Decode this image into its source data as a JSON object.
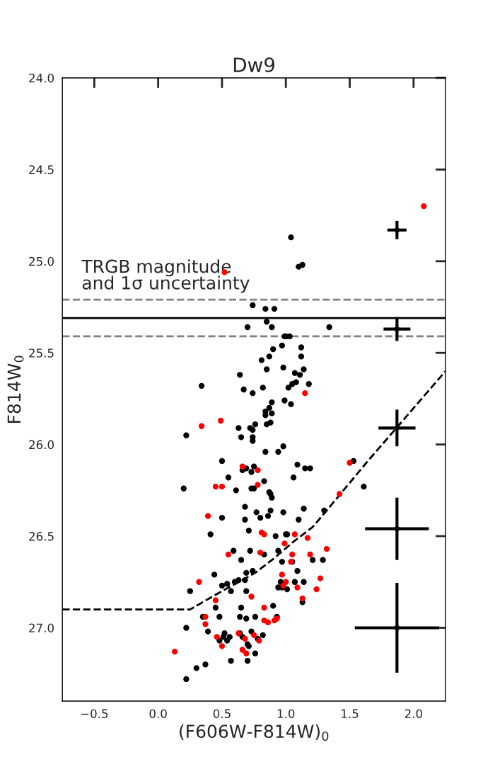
{
  "chart_data": {
    "type": "scatter",
    "title": "Dw9",
    "xlabel": "(F606W-F814W)$_{0}$",
    "ylabel": "F814W$_{0}$",
    "xlim": [
      -0.75,
      2.25
    ],
    "ylim": [
      27.4,
      24.0
    ],
    "xticks": [
      {
        "value": -0.5,
        "label": "−0.5"
      },
      {
        "value": 0,
        "label": "0.0"
      },
      {
        "value": 0.5,
        "label": "0.5"
      },
      {
        "value": 1,
        "label": "1.0"
      },
      {
        "value": 1.5,
        "label": "1.5"
      },
      {
        "value": 2,
        "label": "2.0"
      }
    ],
    "yticks": [
      {
        "value": 24,
        "label": "24.0"
      },
      {
        "value": 24.5,
        "label": "24.5"
      },
      {
        "value": 25,
        "label": "25.0"
      },
      {
        "value": 25.5,
        "label": "25.5"
      },
      {
        "value": 26,
        "label": "26.0"
      },
      {
        "value": 26.5,
        "label": "26.5"
      },
      {
        "value": 27,
        "label": "27.0"
      }
    ],
    "grid": false,
    "legend": false,
    "annotations": [
      "TRGB magnitude\nand 1σ uncertainty"
    ],
    "ref_lines": [
      {
        "axis": "y",
        "value": 25.31,
        "color": "#000000",
        "line_style": "solid"
      },
      {
        "axis": "y",
        "value": 25.21,
        "color": "#808080",
        "line_style": "dashed"
      },
      {
        "axis": "y",
        "value": 25.41,
        "color": "#808080",
        "line_style": "dashed"
      }
    ],
    "series": [
      {
        "color": "#000000",
        "marker": "circle",
        "x": [
          1.04,
          1.1,
          1.13,
          0.74,
          0.84,
          0.91,
          0.85,
          0.7,
          0.89,
          1.34,
          0.99,
          1.0,
          1.03,
          0.97,
          1.12,
          0.9,
          0.87,
          1.12,
          0.81,
          0.85,
          0.98,
          1.14,
          0.64,
          1.07,
          1.11,
          0.34,
          0.67,
          0.74,
          0.82,
          1.02,
          1.05,
          1.08,
          1.18,
          0.89,
          0.99,
          1.04,
          0.87,
          0.84,
          0.89,
          0.84,
          0.88,
          0.85,
          0.76,
          0.63,
          0.72,
          0.74,
          0.22,
          0.65,
          0.74,
          0.74,
          0.84,
          0.94,
          0.98,
          0.5,
          0.69,
          0.75,
          0.66,
          0.73,
          1.09,
          1.15,
          1.19,
          0.55,
          1.06,
          0.83,
          0.73,
          0.75,
          0.2,
          0.61,
          0.87,
          0.88,
          0.89,
          1.53,
          1.61,
          0.68,
          0.88,
          1.14,
          0.77,
          1.3,
          0.5,
          0.68,
          0.8,
          0.86,
          0.98,
          1.1,
          0.41,
          0.71,
          0.92,
          1.0,
          1.01,
          0.59,
          0.72,
          0.83,
          0.94,
          0.65,
          0.97,
          1.05,
          1.21,
          1.29,
          0.44,
          0.69,
          0.74,
          1.09,
          0.63,
          0.6,
          0.68,
          0.5,
          0.54,
          0.96,
          1.07,
          1.14,
          0.94,
          0.97,
          1.01,
          0.25,
          0.57,
          0.69,
          1.13,
          0.45,
          0.65,
          0.9,
          0.35,
          0.48,
          0.64,
          0.69,
          0.76,
          0.93,
          0.22,
          0.39,
          0.48,
          0.51,
          0.52,
          0.54,
          0.56,
          0.64,
          0.66,
          0.73,
          0.78,
          0.82,
          0.7,
          0.71,
          0.76,
          0.57,
          0.7,
          0.37,
          0.3,
          0.22
        ],
        "values": [
          24.87,
          25.03,
          25.02,
          25.24,
          25.26,
          25.26,
          25.33,
          25.36,
          25.36,
          25.36,
          25.41,
          25.41,
          25.41,
          25.46,
          25.47,
          25.48,
          25.52,
          25.52,
          25.54,
          25.59,
          25.58,
          25.59,
          25.62,
          25.61,
          25.62,
          25.68,
          25.7,
          25.72,
          25.69,
          25.69,
          25.67,
          25.66,
          25.67,
          25.77,
          25.76,
          25.78,
          25.8,
          25.82,
          25.83,
          25.84,
          25.88,
          25.89,
          25.89,
          25.91,
          25.91,
          25.92,
          25.95,
          25.96,
          25.96,
          25.98,
          26.04,
          26.04,
          26.01,
          26.09,
          26.13,
          26.12,
          26.14,
          26.15,
          26.11,
          26.13,
          26.13,
          26.18,
          26.18,
          26.2,
          26.24,
          26.24,
          26.24,
          26.25,
          26.26,
          26.27,
          26.29,
          26.09,
          26.23,
          26.34,
          26.36,
          26.35,
          26.37,
          26.36,
          26.4,
          26.41,
          26.4,
          26.39,
          26.37,
          26.41,
          26.49,
          26.47,
          26.5,
          26.49,
          26.49,
          26.58,
          26.58,
          26.6,
          26.58,
          26.63,
          26.64,
          26.64,
          26.63,
          26.63,
          26.71,
          26.7,
          26.69,
          26.69,
          26.74,
          26.75,
          26.74,
          26.77,
          26.76,
          26.75,
          26.75,
          26.75,
          26.78,
          26.78,
          26.79,
          26.8,
          26.8,
          26.8,
          26.86,
          26.89,
          26.89,
          26.88,
          26.94,
          26.94,
          26.94,
          26.95,
          26.94,
          26.94,
          27.0,
          27.02,
          27.07,
          27.05,
          27.03,
          27.07,
          27.05,
          27.03,
          27.05,
          27.02,
          27.06,
          27.04,
          27.09,
          27.1,
          27.14,
          27.18,
          27.18,
          27.2,
          27.22,
          27.28
        ]
      },
      {
        "color": "#ff0000",
        "marker": "circle",
        "x": [
          2.08,
          0.52,
          1.15,
          0.49,
          0.34,
          0.66,
          0.78,
          0.78,
          0.45,
          0.5,
          1.42,
          1.5,
          0.39,
          0.81,
          0.83,
          1.07,
          1.17,
          0.99,
          1.32,
          0.55,
          0.8,
          1.05,
          1.19,
          1.04,
          0.97,
          0.32,
          1.0,
          1.27,
          0.98,
          1.09,
          1.24,
          0.73,
          0.45,
          1.13,
          0.83,
          0.37,
          0.83,
          0.86,
          0.93,
          0.91,
          0.37,
          0.46,
          0.5,
          0.63,
          0.68,
          0.75,
          0.79,
          0.66,
          0.69,
          0.13
        ],
        "values": [
          24.7,
          25.06,
          25.72,
          25.87,
          25.9,
          26.12,
          26.14,
          26.22,
          26.23,
          26.23,
          26.27,
          26.1,
          26.39,
          26.48,
          26.49,
          26.49,
          26.51,
          26.54,
          26.57,
          26.6,
          26.59,
          26.6,
          26.6,
          26.64,
          26.71,
          26.75,
          26.75,
          26.73,
          26.77,
          26.78,
          26.79,
          26.83,
          26.85,
          26.84,
          26.89,
          26.94,
          26.96,
          26.97,
          26.95,
          26.96,
          26.98,
          27.05,
          27.1,
          27.03,
          27.06,
          27.04,
          27.07,
          27.12,
          27.14,
          27.13
        ]
      },
      {
        "type": "line",
        "color": "#000000",
        "marker": "none",
        "line_style": "dashed",
        "x": [
          -0.75,
          0.25,
          0.5,
          0.76,
          0.91,
          1.06,
          1.21,
          1.32,
          1.63,
          2.25
        ],
        "values": [
          26.9,
          26.9,
          26.8,
          26.7,
          26.62,
          26.53,
          26.45,
          26.36,
          26.1,
          25.6
        ]
      },
      {
        "color": "#000000",
        "marker": "circle",
        "x": [
          1.87,
          1.87,
          1.87,
          1.87,
          1.87
        ],
        "values": [
          24.83,
          25.37,
          25.91,
          26.46,
          27.0
        ],
        "errors": [
          0.05,
          0.065,
          0.1,
          0.17,
          0.245
        ],
        "xerrors": [
          0.075,
          0.105,
          0.145,
          0.25,
          0.33
        ]
      }
    ]
  }
}
